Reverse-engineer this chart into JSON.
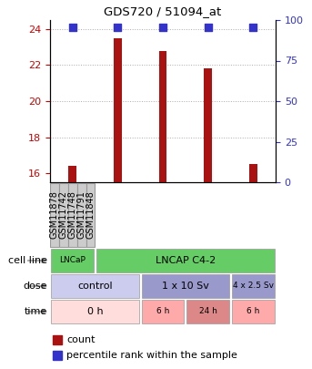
{
  "title": "GDS720 / 51094_at",
  "samples": [
    "GSM11878",
    "GSM11742",
    "GSM11748",
    "GSM11791",
    "GSM11848"
  ],
  "bar_values": [
    16.4,
    23.5,
    22.8,
    21.8,
    16.5
  ],
  "bar_color": "#aa1111",
  "percentile_color": "#3333cc",
  "ylim_left": [
    15.5,
    24.5
  ],
  "yticks_left": [
    16,
    18,
    20,
    22,
    24
  ],
  "yticks_right": [
    0,
    25,
    50,
    75,
    100
  ],
  "left_tick_color": "#cc0000",
  "right_tick_color": "#3333cc",
  "cell_line_color": "#66cc66",
  "dose_light_color": "#ccccee",
  "dose_dark_color": "#9999cc",
  "time_light_color": "#ffdddd",
  "time_mid_color": "#ffaaaa",
  "time_dark_color": "#dd8888",
  "sample_box_color": "#cccccc",
  "legend_count": "count",
  "legend_percentile": "percentile rank within the sample"
}
